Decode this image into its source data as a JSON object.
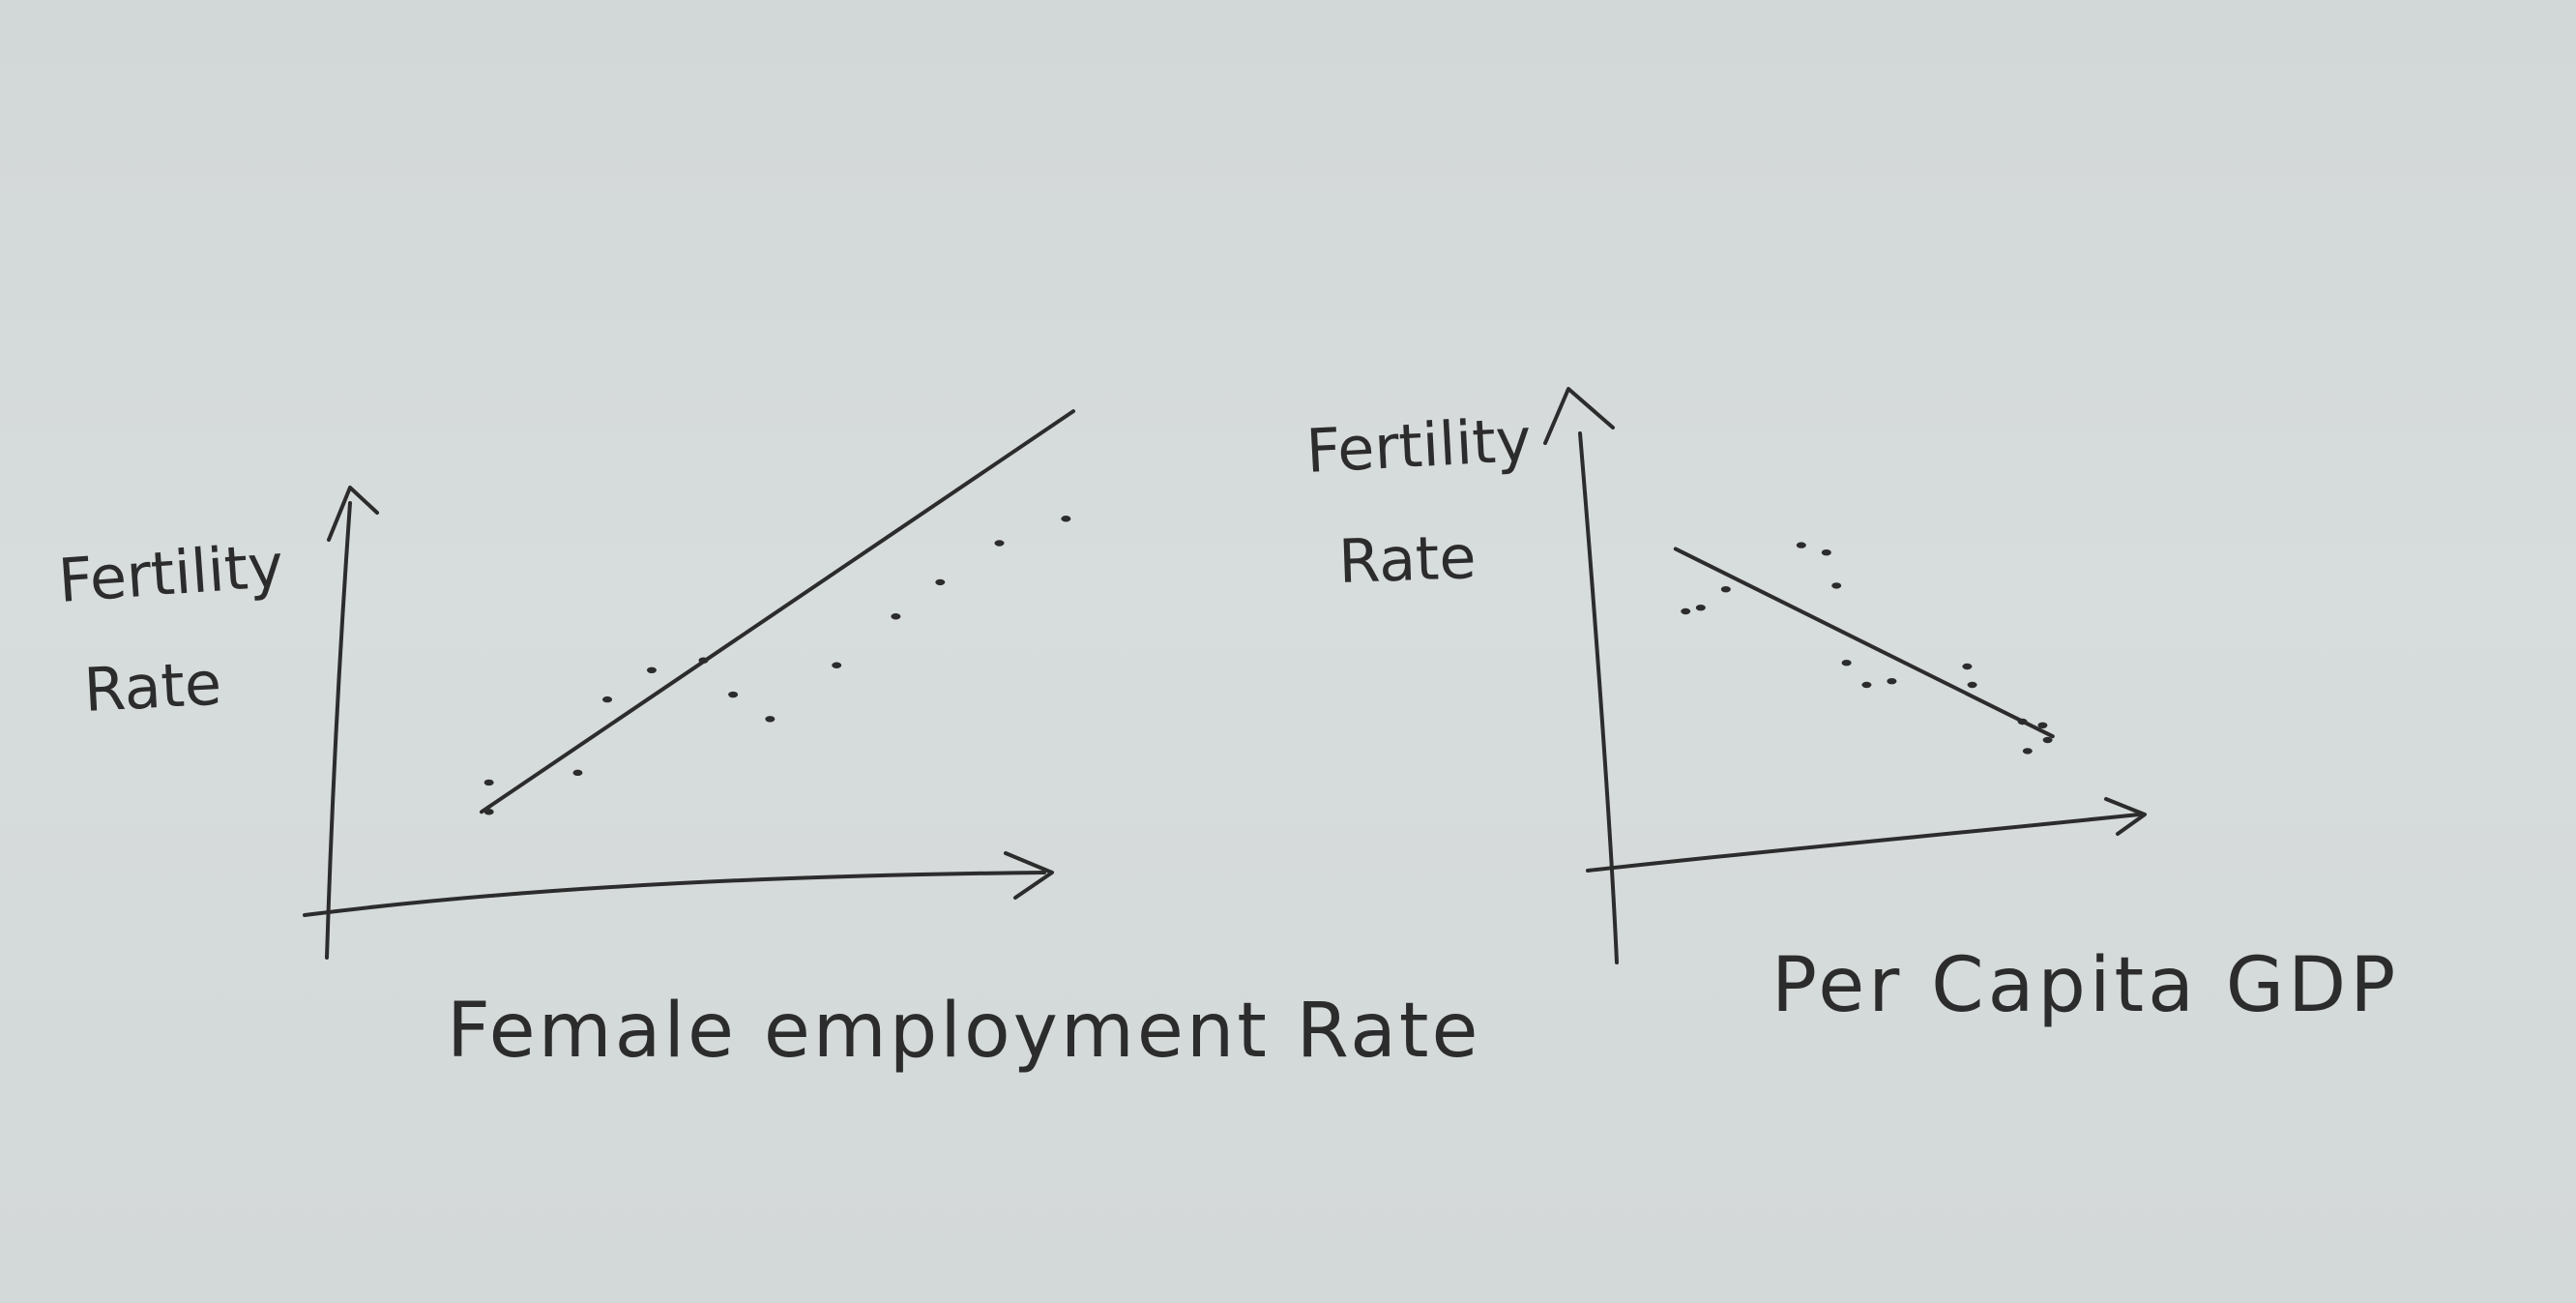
{
  "colors": {
    "paper": "#d5dada",
    "ink": "#2c2c2c"
  },
  "chart_data": [
    {
      "type": "scatter",
      "title": "",
      "xlabel": "Female employment Rate",
      "ylabel_line1": "Fertility",
      "ylabel_line2": "Rate",
      "trend": "positive",
      "xlim": [
        0,
        100
      ],
      "ylim": [
        0,
        100
      ],
      "trendline": {
        "x": [
          20,
          100
        ],
        "y": [
          15,
          97
        ]
      },
      "points": [
        {
          "x": 21,
          "y": 21
        },
        {
          "x": 21,
          "y": 15
        },
        {
          "x": 33,
          "y": 23
        },
        {
          "x": 37,
          "y": 38
        },
        {
          "x": 43,
          "y": 44
        },
        {
          "x": 50,
          "y": 46
        },
        {
          "x": 54,
          "y": 39
        },
        {
          "x": 59,
          "y": 34
        },
        {
          "x": 68,
          "y": 45
        },
        {
          "x": 76,
          "y": 55
        },
        {
          "x": 82,
          "y": 62
        },
        {
          "x": 90,
          "y": 70
        },
        {
          "x": 99,
          "y": 75
        }
      ]
    },
    {
      "type": "scatter",
      "title": "",
      "xlabel": "Per Capita GDP",
      "ylabel_line1": "Fertility",
      "ylabel_line2": "Rate",
      "trend": "negative",
      "xlim": [
        0,
        100
      ],
      "ylim": [
        0,
        100
      ],
      "trendline": {
        "x": [
          14,
          89
        ],
        "y": [
          77,
          26
        ]
      },
      "points": [
        {
          "x": 16,
          "y": 60
        },
        {
          "x": 19,
          "y": 61
        },
        {
          "x": 24,
          "y": 66
        },
        {
          "x": 39,
          "y": 78
        },
        {
          "x": 44,
          "y": 76
        },
        {
          "x": 46,
          "y": 67
        },
        {
          "x": 48,
          "y": 46
        },
        {
          "x": 52,
          "y": 40
        },
        {
          "x": 57,
          "y": 41
        },
        {
          "x": 72,
          "y": 45
        },
        {
          "x": 73,
          "y": 40
        },
        {
          "x": 83,
          "y": 30
        },
        {
          "x": 87,
          "y": 29
        },
        {
          "x": 88,
          "y": 25
        },
        {
          "x": 84,
          "y": 22
        }
      ]
    }
  ]
}
